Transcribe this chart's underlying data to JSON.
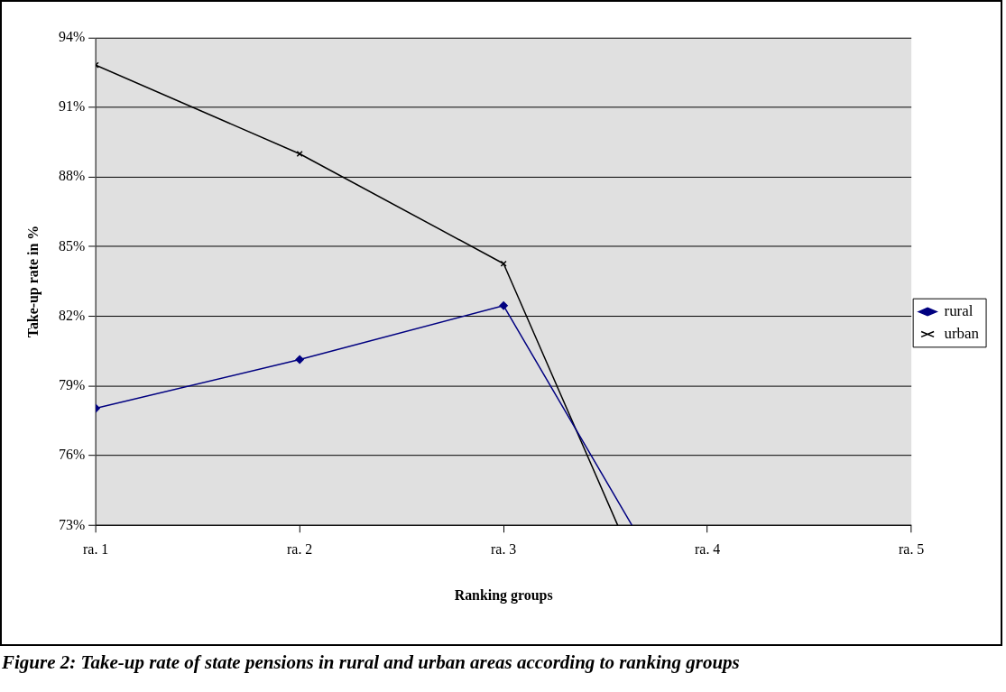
{
  "chart_data": {
    "type": "line",
    "title": "Figure 2: Take-up rate of state pensions in rural and urban areas according to ranking groups",
    "xlabel": "Ranking groups",
    "ylabel": "Take-up rate in %",
    "series": [
      {
        "name": "rural",
        "color": "#000080",
        "marker": "diamond",
        "x": [
          1,
          2,
          3,
          3.63
        ],
        "values": [
          78.04,
          80.14,
          82.46,
          73
        ]
      },
      {
        "name": "urban",
        "color": "#000000",
        "marker": "cross",
        "x": [
          1,
          2,
          3,
          3.56
        ],
        "values": [
          92.82,
          89.0,
          84.27,
          73
        ]
      }
    ],
    "xlim": [
      1,
      5
    ],
    "xticks": [
      {
        "value": 1,
        "label": "ra. 1"
      },
      {
        "value": 2,
        "label": "ra. 2"
      },
      {
        "value": 3,
        "label": "ra. 3"
      },
      {
        "value": 4,
        "label": "ra. 4"
      },
      {
        "value": 5,
        "label": "ra. 5"
      }
    ],
    "ylim": [
      73,
      94
    ],
    "yticks": [
      {
        "value": 73,
        "label": "73%"
      },
      {
        "value": 76,
        "label": "76%"
      },
      {
        "value": 79,
        "label": "79%"
      },
      {
        "value": 82,
        "label": "82%"
      },
      {
        "value": 85,
        "label": "85%"
      },
      {
        "value": 88,
        "label": "88%"
      },
      {
        "value": 91,
        "label": "91%"
      },
      {
        "value": 94,
        "label": "94%"
      }
    ],
    "grid": "y",
    "legend": "right",
    "line_style": "solid"
  }
}
